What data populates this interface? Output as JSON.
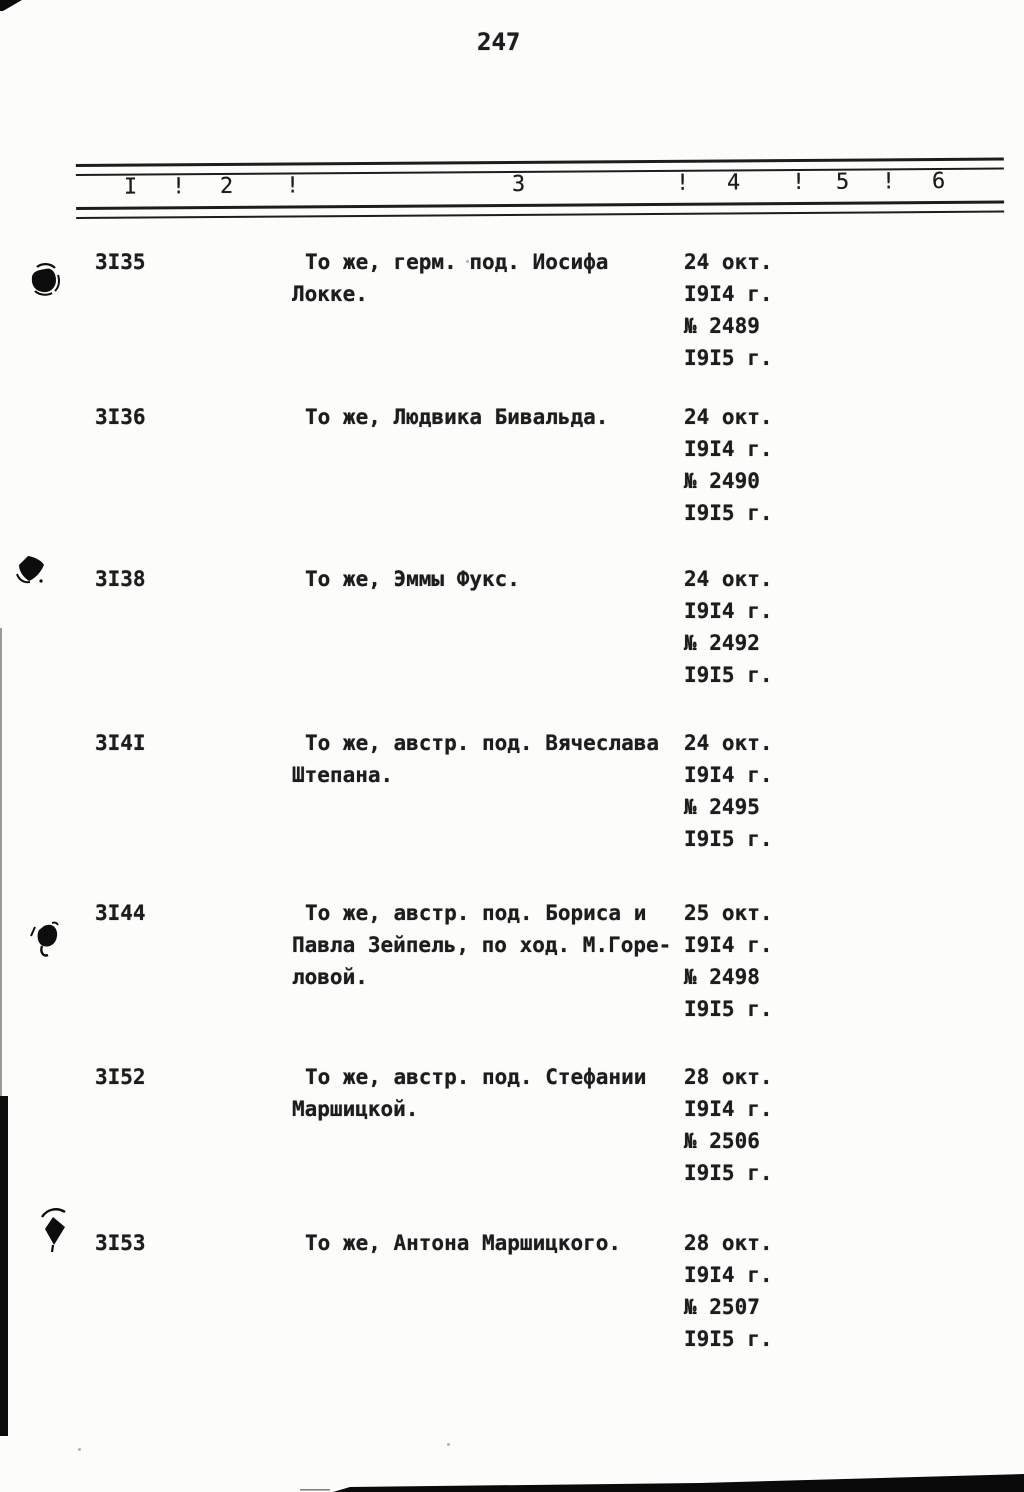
{
  "page": {
    "number": "247",
    "paper_color": "#fcfcfa",
    "ink_color": "#1d1d1d"
  },
  "table": {
    "header": {
      "cells": [
        "I",
        "!",
        "2",
        "!",
        "3",
        "!",
        "4",
        "!",
        "5",
        "!",
        "6"
      ]
    },
    "rows": [
      {
        "id": "3I35",
        "description": [
          "То же, герм. под. Иосифа",
          "Локке."
        ],
        "date": [
          "24 окт.",
          "I9I4 г.",
          "№ 2489",
          "I9I5 г."
        ]
      },
      {
        "id": "3I36",
        "description": [
          "То же, Людвика Бивальда."
        ],
        "date": [
          "24 окт.",
          "I9I4 г.",
          "№ 2490",
          "I9I5 г."
        ]
      },
      {
        "id": "3I38",
        "description": [
          "То же, Эммы Фукс."
        ],
        "date": [
          "24 окт.",
          "I9I4 г.",
          "№ 2492",
          "I9I5 г."
        ]
      },
      {
        "id": "3I4I",
        "description": [
          "То же, австр. под. Вячеслава",
          "Штепана."
        ],
        "date": [
          "24 окт.",
          "I9I4 г.",
          "№ 2495",
          "I9I5 г."
        ]
      },
      {
        "id": "3I44",
        "description": [
          "То же, австр. под. Бориса и",
          "Павла Зейпель, по ход. М.Горе-",
          "ловой."
        ],
        "date": [
          "25 окт.",
          "I9I4 г.",
          "№ 2498",
          "I9I5 г."
        ]
      },
      {
        "id": "3I52",
        "description": [
          "То же, австр. под. Стефании",
          "Маршицкой."
        ],
        "date": [
          "28 окт.",
          "I9I4 г.",
          "№ 2506",
          "I9I5 г."
        ]
      },
      {
        "id": "3I53",
        "description": [
          "То же, Антона Маршицкого."
        ],
        "date": [
          "28 окт.",
          "I9I4 г.",
          "№ 2507",
          "I9I5 г."
        ]
      }
    ]
  }
}
